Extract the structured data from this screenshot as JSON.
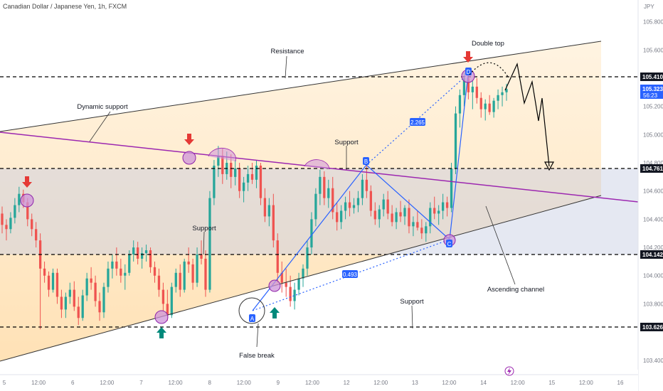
{
  "header": {
    "title": "Canadian Dollar / Japanese Yen, 1h, FXCM",
    "currency": "JPY"
  },
  "colors": {
    "up": "#26a69a",
    "down": "#ef5350",
    "purple_line": "#9c27b0",
    "channel_line": "#000000",
    "pattern_line": "#2962ff",
    "level_band": "#b2b5be",
    "channel_fill": "#ffe0b2",
    "marker_fill": "#ce93d8",
    "arrow_down": "#e53935",
    "arrow_up": "#00897b",
    "level_tag": "#131722"
  },
  "icons": {
    "lightning_icon": "lightning-icon"
  },
  "chart_data": {
    "type": "candlestick",
    "title": "Canadian Dollar / Japanese Yen, 1h, FXCM",
    "y_axis": {
      "range": [
        103.3,
        106.05
      ],
      "ticks": [
        "105.800",
        "105.600",
        "105.200",
        "105.000",
        "104.800",
        "104.600",
        "104.400",
        "104.200",
        "104.000",
        "103.800",
        "103.400"
      ]
    },
    "x_axis": {
      "ticks": [
        "5",
        "12:00",
        "6",
        "12:00",
        "7",
        "12:00",
        "8",
        "12:00",
        "9",
        "12:00",
        "12",
        "12:00",
        "13",
        "12:00",
        "14",
        "12:00",
        "15",
        "12:00",
        "16"
      ]
    },
    "price_tags": [
      {
        "value": "105.410",
        "style": "dark"
      },
      {
        "value": "105.323",
        "countdown": "56:23",
        "style": "current"
      },
      {
        "value": "104.761",
        "style": "dark"
      },
      {
        "value": "104.142",
        "style": "dark"
      },
      {
        "value": "103.626",
        "style": "dark"
      }
    ],
    "horizontal_levels": [
      105.41,
      104.761,
      104.142,
      103.626
    ],
    "support_zone": [
      104.142,
      104.761
    ],
    "labels": {
      "resistance": "Resistance",
      "double_top": "Double top",
      "dynamic_support": "Dynamic support",
      "support_top": "Support",
      "support_mid": "Support",
      "support_bottom": "Support",
      "ascending_channel": "Ascending channel",
      "false_break": "False break"
    },
    "pattern_points": {
      "A": "A",
      "B": "B",
      "C": "C",
      "D": "D"
    },
    "ratios": {
      "upper": "2.265",
      "lower": "0.493"
    },
    "candles_ohlc": [
      [
        104.44,
        104.49,
        104.3,
        104.36
      ],
      [
        104.36,
        104.4,
        104.25,
        104.33
      ],
      [
        104.33,
        104.45,
        104.3,
        104.41
      ],
      [
        104.41,
        104.55,
        104.37,
        104.5
      ],
      [
        104.5,
        104.63,
        104.45,
        104.58
      ],
      [
        104.58,
        104.61,
        104.48,
        104.52
      ],
      [
        104.52,
        104.55,
        104.35,
        104.4
      ],
      [
        104.4,
        104.44,
        104.28,
        104.33
      ],
      [
        104.33,
        104.38,
        104.2,
        104.25
      ],
      [
        104.25,
        104.3,
        103.62,
        104.05
      ],
      [
        104.05,
        104.1,
        103.95,
        104.0
      ],
      [
        104.0,
        104.03,
        103.85,
        103.9
      ],
      [
        103.9,
        104.05,
        103.88,
        104.02
      ],
      [
        104.02,
        104.05,
        103.8,
        103.85
      ],
      [
        103.85,
        103.9,
        103.7,
        103.76
      ],
      [
        103.76,
        103.88,
        103.7,
        103.85
      ],
      [
        103.85,
        103.95,
        103.8,
        103.9
      ],
      [
        103.9,
        103.96,
        103.75,
        103.78
      ],
      [
        103.78,
        103.85,
        103.65,
        103.7
      ],
      [
        103.7,
        103.9,
        103.68,
        103.86
      ],
      [
        103.86,
        104.02,
        103.82,
        103.98
      ],
      [
        103.98,
        104.06,
        103.9,
        103.95
      ],
      [
        103.95,
        104.0,
        103.78,
        103.82
      ],
      [
        103.82,
        103.88,
        103.68,
        103.74
      ],
      [
        103.74,
        103.95,
        103.7,
        103.92
      ],
      [
        103.92,
        104.1,
        103.88,
        104.05
      ],
      [
        104.05,
        104.15,
        103.98,
        104.1
      ],
      [
        104.1,
        104.2,
        104.0,
        104.05
      ],
      [
        104.05,
        104.12,
        103.95,
        104.0
      ],
      [
        104.0,
        104.08,
        103.9,
        104.02
      ],
      [
        104.02,
        104.18,
        104.0,
        104.15
      ],
      [
        104.15,
        104.25,
        104.1,
        104.2
      ],
      [
        104.2,
        104.24,
        104.08,
        104.12
      ],
      [
        104.12,
        104.2,
        104.05,
        104.16
      ],
      [
        104.16,
        104.22,
        104.1,
        104.18
      ],
      [
        104.18,
        104.2,
        104.02,
        104.06
      ],
      [
        104.06,
        104.1,
        103.95,
        104.0
      ],
      [
        104.0,
        104.05,
        103.85,
        103.9
      ],
      [
        103.9,
        103.95,
        103.75,
        103.8
      ],
      [
        103.8,
        103.9,
        103.68,
        103.72
      ],
      [
        103.72,
        103.95,
        103.7,
        103.92
      ],
      [
        103.92,
        104.05,
        103.88,
        104.02
      ],
      [
        104.02,
        104.08,
        103.85,
        103.9
      ],
      [
        103.9,
        104.12,
        103.88,
        104.1
      ],
      [
        104.1,
        104.2,
        104.02,
        104.08
      ],
      [
        104.08,
        104.12,
        103.9,
        103.95
      ],
      [
        103.95,
        104.2,
        103.92,
        104.15
      ],
      [
        104.15,
        104.25,
        104.08,
        104.12
      ],
      [
        104.12,
        104.18,
        103.85,
        103.9
      ],
      [
        103.9,
        104.6,
        103.88,
        104.55
      ],
      [
        104.55,
        104.82,
        104.5,
        104.78
      ],
      [
        104.78,
        104.92,
        104.7,
        104.85
      ],
      [
        104.85,
        104.9,
        104.65,
        104.72
      ],
      [
        104.72,
        104.88,
        104.68,
        104.8
      ],
      [
        104.8,
        104.86,
        104.62,
        104.7
      ],
      [
        104.7,
        104.82,
        104.64,
        104.76
      ],
      [
        104.76,
        104.8,
        104.55,
        104.6
      ],
      [
        104.6,
        104.7,
        104.52,
        104.66
      ],
      [
        104.66,
        104.78,
        104.6,
        104.72
      ],
      [
        104.72,
        104.8,
        104.65,
        104.68
      ],
      [
        104.68,
        104.82,
        104.62,
        104.78
      ],
      [
        104.78,
        104.8,
        104.5,
        104.55
      ],
      [
        104.55,
        104.62,
        104.38,
        104.42
      ],
      [
        104.42,
        104.55,
        104.35,
        104.5
      ],
      [
        104.5,
        104.58,
        104.2,
        104.25
      ],
      [
        104.25,
        104.3,
        103.95,
        104.02
      ],
      [
        104.02,
        104.1,
        103.88,
        103.95
      ],
      [
        103.95,
        104.05,
        103.85,
        103.92
      ],
      [
        103.92,
        104.0,
        103.78,
        103.82
      ],
      [
        103.82,
        103.95,
        103.76,
        103.9
      ],
      [
        103.9,
        104.02,
        103.86,
        103.98
      ],
      [
        103.98,
        104.08,
        103.92,
        104.05
      ],
      [
        104.05,
        104.25,
        104.0,
        104.2
      ],
      [
        104.2,
        104.45,
        104.15,
        104.4
      ],
      [
        104.4,
        104.62,
        104.35,
        104.58
      ],
      [
        104.58,
        104.75,
        104.5,
        104.7
      ],
      [
        104.7,
        104.74,
        104.5,
        104.55
      ],
      [
        104.55,
        104.68,
        104.48,
        104.62
      ],
      [
        104.62,
        104.7,
        104.4,
        104.45
      ],
      [
        104.45,
        104.52,
        104.32,
        104.38
      ],
      [
        104.38,
        104.5,
        104.33,
        104.46
      ],
      [
        104.46,
        104.56,
        104.4,
        104.52
      ],
      [
        104.52,
        104.6,
        104.42,
        104.48
      ],
      [
        104.48,
        104.55,
        104.44,
        104.5
      ],
      [
        104.5,
        104.6,
        104.45,
        104.55
      ],
      [
        104.55,
        104.72,
        104.5,
        104.68
      ],
      [
        104.68,
        104.78,
        104.55,
        104.6
      ],
      [
        104.6,
        104.64,
        104.42,
        104.46
      ],
      [
        104.46,
        104.52,
        104.36,
        104.4
      ],
      [
        104.4,
        104.5,
        104.34,
        104.47
      ],
      [
        104.47,
        104.58,
        104.42,
        104.54
      ],
      [
        104.54,
        104.6,
        104.4,
        104.44
      ],
      [
        104.44,
        104.5,
        104.35,
        104.38
      ],
      [
        104.38,
        104.48,
        104.33,
        104.45
      ],
      [
        104.45,
        104.53,
        104.38,
        104.42
      ],
      [
        104.42,
        104.5,
        104.36,
        104.48
      ],
      [
        104.48,
        104.54,
        104.3,
        104.35
      ],
      [
        104.35,
        104.42,
        104.28,
        104.38
      ],
      [
        104.38,
        104.46,
        104.32,
        104.34
      ],
      [
        104.34,
        104.4,
        104.26,
        104.3
      ],
      [
        104.3,
        104.38,
        104.24,
        104.35
      ],
      [
        104.35,
        104.52,
        104.3,
        104.48
      ],
      [
        104.48,
        104.56,
        104.4,
        104.44
      ],
      [
        104.44,
        104.5,
        104.36,
        104.46
      ],
      [
        104.46,
        104.58,
        104.4,
        104.52
      ],
      [
        104.52,
        104.56,
        104.42,
        104.48
      ],
      [
        104.48,
        104.8,
        104.45,
        104.76
      ],
      [
        104.76,
        105.2,
        104.72,
        105.15
      ],
      [
        105.15,
        105.32,
        105.05,
        105.28
      ],
      [
        105.28,
        105.44,
        105.2,
        105.4
      ],
      [
        105.4,
        105.45,
        105.25,
        105.3
      ],
      [
        105.3,
        105.38,
        105.18,
        105.34
      ],
      [
        105.34,
        105.4,
        105.22,
        105.26
      ],
      [
        105.26,
        105.3,
        105.12,
        105.18
      ],
      [
        105.18,
        105.25,
        105.1,
        105.22
      ],
      [
        105.22,
        105.28,
        105.14,
        105.16
      ],
      [
        105.16,
        105.26,
        105.12,
        105.24
      ],
      [
        105.24,
        105.32,
        105.18,
        105.28
      ],
      [
        105.28,
        105.34,
        105.2,
        105.3
      ],
      [
        105.3,
        105.36,
        105.24,
        105.323
      ]
    ]
  }
}
